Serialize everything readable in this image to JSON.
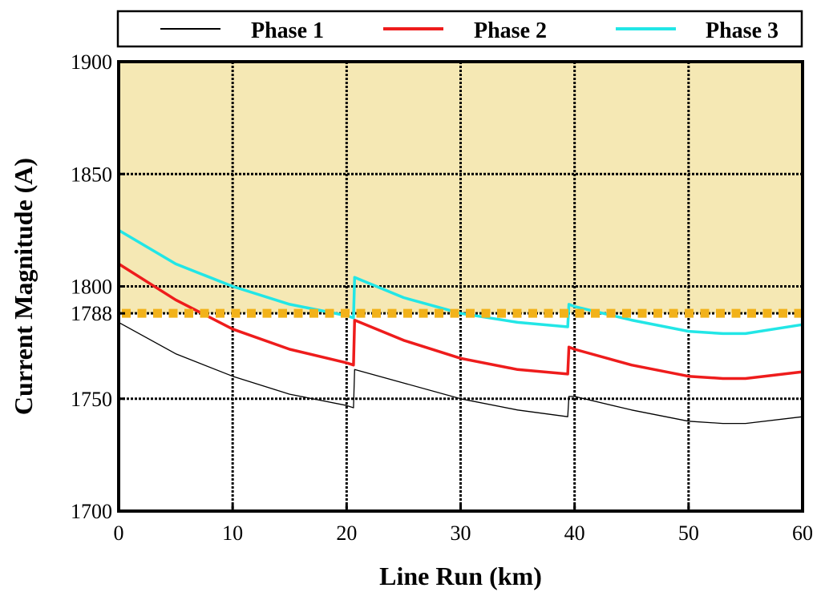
{
  "chart_data": {
    "type": "line",
    "title": "",
    "xlabel": "Line Run (km)",
    "ylabel": "Current Magnitude (A)",
    "xlim": [
      0,
      60
    ],
    "ylim": [
      1700,
      1900
    ],
    "x_ticks": [
      0,
      10,
      20,
      30,
      40,
      50,
      60
    ],
    "y_ticks": [
      1700,
      1750,
      1788,
      1800,
      1850,
      1900
    ],
    "grid": true,
    "legend_position": "top",
    "threshold": {
      "value": 1788,
      "label": "1788",
      "color": "#f2b21a",
      "style": "dotted"
    },
    "shaded_region": {
      "from": 1788,
      "to": 1900,
      "color": "#f5e8b4"
    },
    "colors": {
      "phase1": "#000000",
      "phase2": "#ee1c1c",
      "phase3": "#22e6e6"
    },
    "series": [
      {
        "name": "Phase 1",
        "x": [
          0,
          5,
          10,
          15,
          20,
          20.6,
          20.7,
          25,
          30,
          35,
          39.4,
          39.5,
          40,
          45,
          50,
          53,
          55,
          60
        ],
        "values": [
          1784,
          1770,
          1760,
          1752,
          1747,
          1746,
          1763,
          1757,
          1750,
          1745,
          1742,
          1751,
          1751,
          1745,
          1740,
          1739,
          1739,
          1742
        ]
      },
      {
        "name": "Phase 2",
        "x": [
          0,
          5,
          10,
          15,
          20,
          20.6,
          20.7,
          25,
          30,
          35,
          39.4,
          39.5,
          40,
          45,
          50,
          53,
          55,
          60
        ],
        "values": [
          1810,
          1794,
          1781,
          1772,
          1766,
          1765,
          1785,
          1776,
          1768,
          1763,
          1761,
          1773,
          1772,
          1765,
          1760,
          1759,
          1759,
          1762
        ]
      },
      {
        "name": "Phase 3",
        "x": [
          0,
          5,
          10,
          15,
          20,
          20.6,
          20.7,
          25,
          30,
          35,
          39.4,
          39.5,
          40,
          45,
          50,
          53,
          55,
          60
        ],
        "values": [
          1825,
          1810,
          1800,
          1792,
          1787,
          1786,
          1804,
          1795,
          1788,
          1784,
          1782,
          1792,
          1791,
          1785,
          1780,
          1779,
          1779,
          1783
        ]
      }
    ]
  }
}
